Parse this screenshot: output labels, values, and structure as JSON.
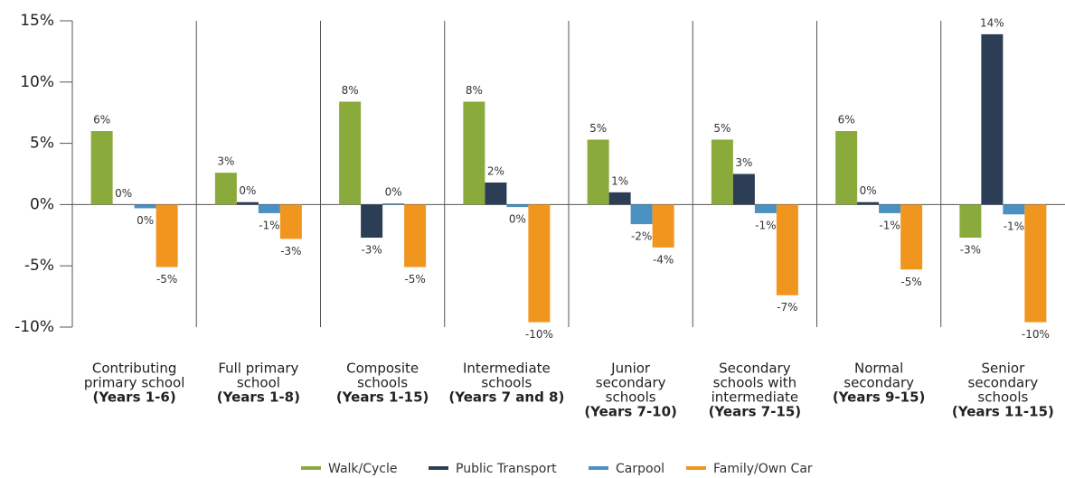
{
  "chart_data": {
    "type": "bar",
    "categories": [
      [
        "Contributing",
        "primary school",
        "(Years 1-6)"
      ],
      [
        "Full primary",
        "school",
        "(Years 1-8)"
      ],
      [
        "Composite",
        "schools",
        "(Years 1-15)"
      ],
      [
        "Intermediate",
        "schools",
        "(Years 7 and 8)"
      ],
      [
        "Junior",
        "secondary",
        "schools",
        "(Years 7-10)"
      ],
      [
        "Secondary",
        "schools with",
        "intermediate",
        "(Years 7-15)"
      ],
      [
        "Normal",
        "secondary",
        "(Years 9-15)"
      ],
      [
        "Senior",
        "secondary",
        "schools",
        "(Years 11-15)"
      ]
    ],
    "series": [
      {
        "name": "Walk/Cycle",
        "color": "#8aab3c",
        "values": [
          6.0,
          2.6,
          8.4,
          8.4,
          5.3,
          5.3,
          6.0,
          -2.7
        ],
        "value_labels": [
          "6%",
          "3%",
          "8%",
          "8%",
          "5%",
          "5%",
          "6%",
          "-3%"
        ]
      },
      {
        "name": "Public Transport",
        "color": "#2c3e55",
        "values": [
          0.0,
          0.2,
          -2.7,
          1.8,
          1.0,
          2.5,
          0.2,
          13.9
        ],
        "value_labels": [
          "0%",
          "0%",
          "-3%",
          "2%",
          "1%",
          "3%",
          "0%",
          "14%"
        ]
      },
      {
        "name": "Carpool",
        "color": "#4a90c2",
        "values": [
          -0.3,
          -0.7,
          0.1,
          -0.2,
          -1.6,
          -0.7,
          -0.7,
          -0.8
        ],
        "value_labels": [
          "0%",
          "-1%",
          "0%",
          "0%",
          "-2%",
          "-1%",
          "-1%",
          "-1%"
        ]
      },
      {
        "name": "Family/Own Car",
        "color": "#f0961f",
        "values": [
          -5.1,
          -2.8,
          -5.1,
          -9.6,
          -3.5,
          -7.4,
          -5.3,
          -9.6
        ],
        "value_labels": [
          "-5%",
          "-3%",
          "-5%",
          "-10%",
          "-4%",
          "-7%",
          "-5%",
          "-10%"
        ]
      }
    ],
    "ylim": [
      -10,
      15
    ],
    "yticks": [
      {
        "value": -10,
        "label": "-10%"
      },
      {
        "value": -5,
        "label": "-5%"
      },
      {
        "value": 0,
        "label": "0%"
      },
      {
        "value": 5,
        "label": "5%"
      },
      {
        "value": 10,
        "label": "10%"
      },
      {
        "value": 15,
        "label": "15%"
      }
    ],
    "grid": false
  }
}
